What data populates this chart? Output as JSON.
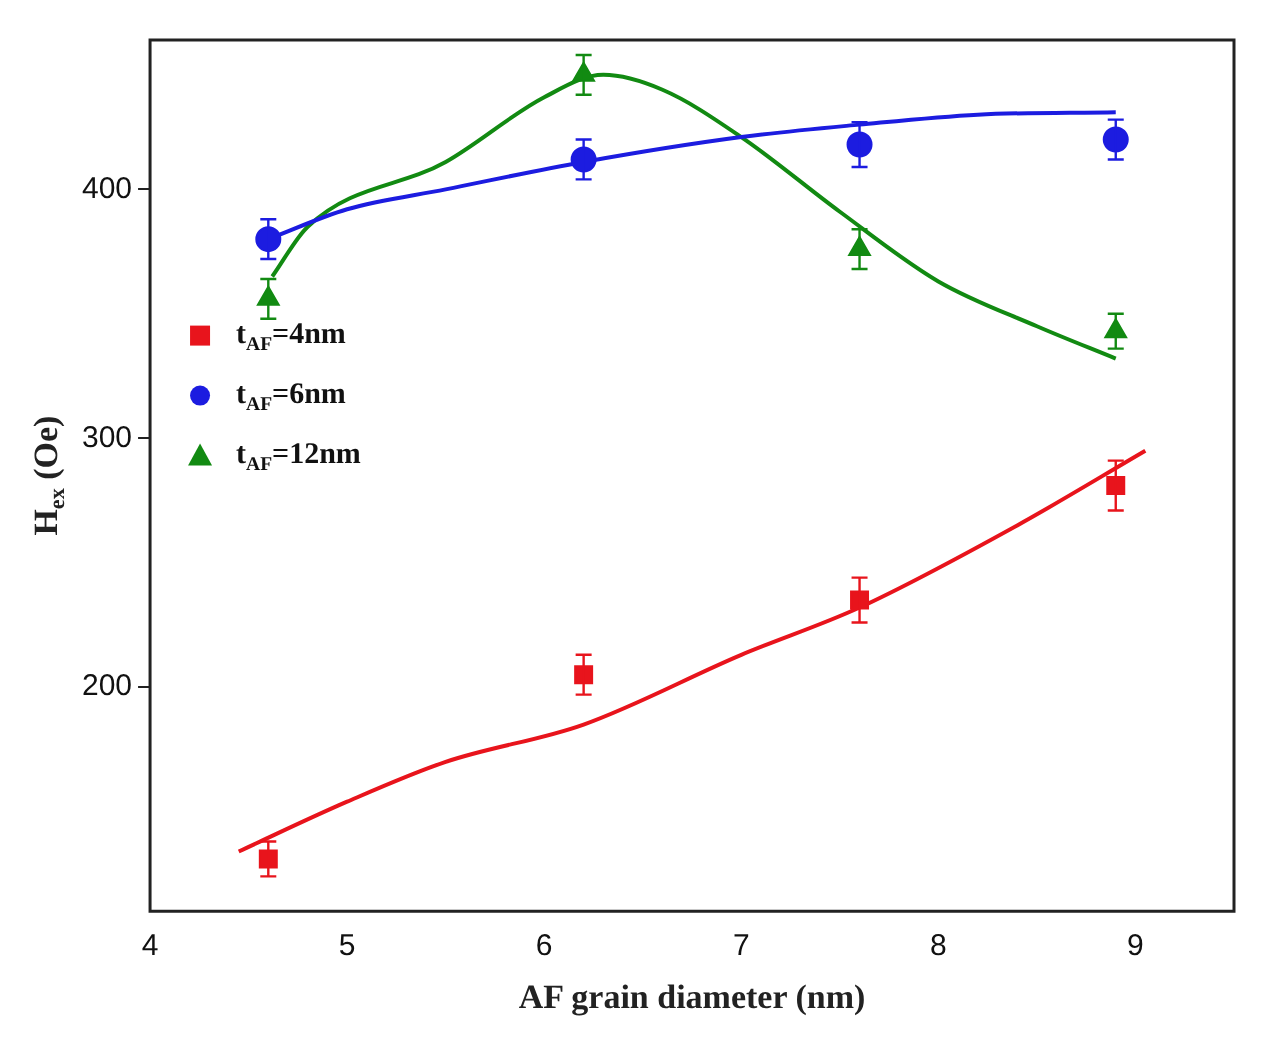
{
  "chart_data": {
    "type": "scatter",
    "xlabel": "AF grain diameter (nm)",
    "ylabel": "H$_{ex}$ (Oe)",
    "xlim": [
      4,
      9.5
    ],
    "xticks": [
      4,
      5,
      6,
      7,
      8,
      9
    ],
    "ylim": [
      110,
      460
    ],
    "yticks": [
      200,
      300,
      400
    ],
    "grid": false,
    "legend": "left",
    "series": [
      {
        "name": "t$_{AF}$=4nm",
        "color": "#e8141c",
        "marker": "square",
        "x": [
          4.6,
          6.2,
          7.6,
          8.9
        ],
        "values": [
          131,
          205,
          235,
          281
        ],
        "errors": [
          7,
          8,
          9,
          10
        ]
      },
      {
        "name": "t$_{AF}$=6nm",
        "color": "#1c1ce0",
        "marker": "circle",
        "x": [
          4.6,
          6.2,
          7.6,
          8.9
        ],
        "values": [
          380,
          412,
          418,
          420
        ],
        "errors": [
          8,
          8,
          9,
          8
        ]
      },
      {
        "name": "t$_{AF}$=12nm",
        "color": "#128a12",
        "marker": "triangle",
        "x": [
          4.6,
          6.2,
          7.6,
          8.9
        ],
        "values": [
          356,
          446,
          376,
          343
        ],
        "errors": [
          8,
          8,
          8,
          7
        ]
      },
      {
        "type": "line",
        "color": "#e8141c",
        "marker": "none",
        "x": [
          4.45,
          5,
          5.5,
          6.2,
          7,
          7.6,
          8.4,
          9.05
        ],
        "values": [
          134,
          154,
          170,
          185,
          213,
          232,
          265,
          295
        ]
      },
      {
        "type": "line",
        "color": "#1c1ce0",
        "marker": "none",
        "x": [
          4.6,
          5,
          5.5,
          6.2,
          7,
          7.6,
          8.2,
          8.9
        ],
        "values": [
          380,
          392,
          400,
          411,
          421,
          426,
          430,
          431
        ]
      },
      {
        "type": "line",
        "color": "#128a12",
        "marker": "none",
        "x": [
          4.62,
          4.8,
          5.5,
          6,
          6.3,
          6.6,
          7,
          7.5,
          8,
          8.5,
          8.9
        ],
        "values": [
          365,
          385,
          411,
          437,
          446,
          440,
          421,
          391,
          363,
          345,
          332
        ]
      }
    ]
  }
}
